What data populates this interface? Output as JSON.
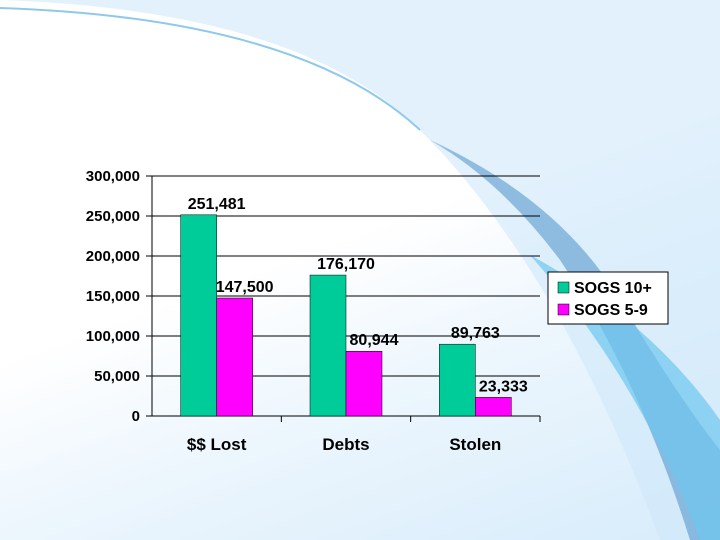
{
  "slide": {
    "accent_colors": [
      "#4a90c8",
      "#6ec6f0",
      "#cde9fb"
    ]
  },
  "chart_data": {
    "type": "bar",
    "categories": [
      "$$ Lost",
      "Debts",
      "Stolen"
    ],
    "series": [
      {
        "name": "SOGS 10+",
        "values": [
          251481,
          176170,
          89763
        ],
        "labels": [
          "251,481",
          "176,170",
          "89,763"
        ],
        "color": "#00cc99"
      },
      {
        "name": "SOGS 5-9",
        "values": [
          147500,
          80944,
          23333
        ],
        "labels": [
          "147,500",
          "80,944",
          "23,333"
        ],
        "color": "#ff00ff"
      }
    ],
    "y_ticks": [
      0,
      50000,
      100000,
      150000,
      200000,
      250000,
      300000
    ],
    "y_tick_labels": [
      "0",
      "50,000",
      "100,000",
      "150,000",
      "200,000",
      "250,000",
      "300,000"
    ],
    "ylim": [
      0,
      300000
    ],
    "gridlines": true,
    "legend_position": "right"
  }
}
